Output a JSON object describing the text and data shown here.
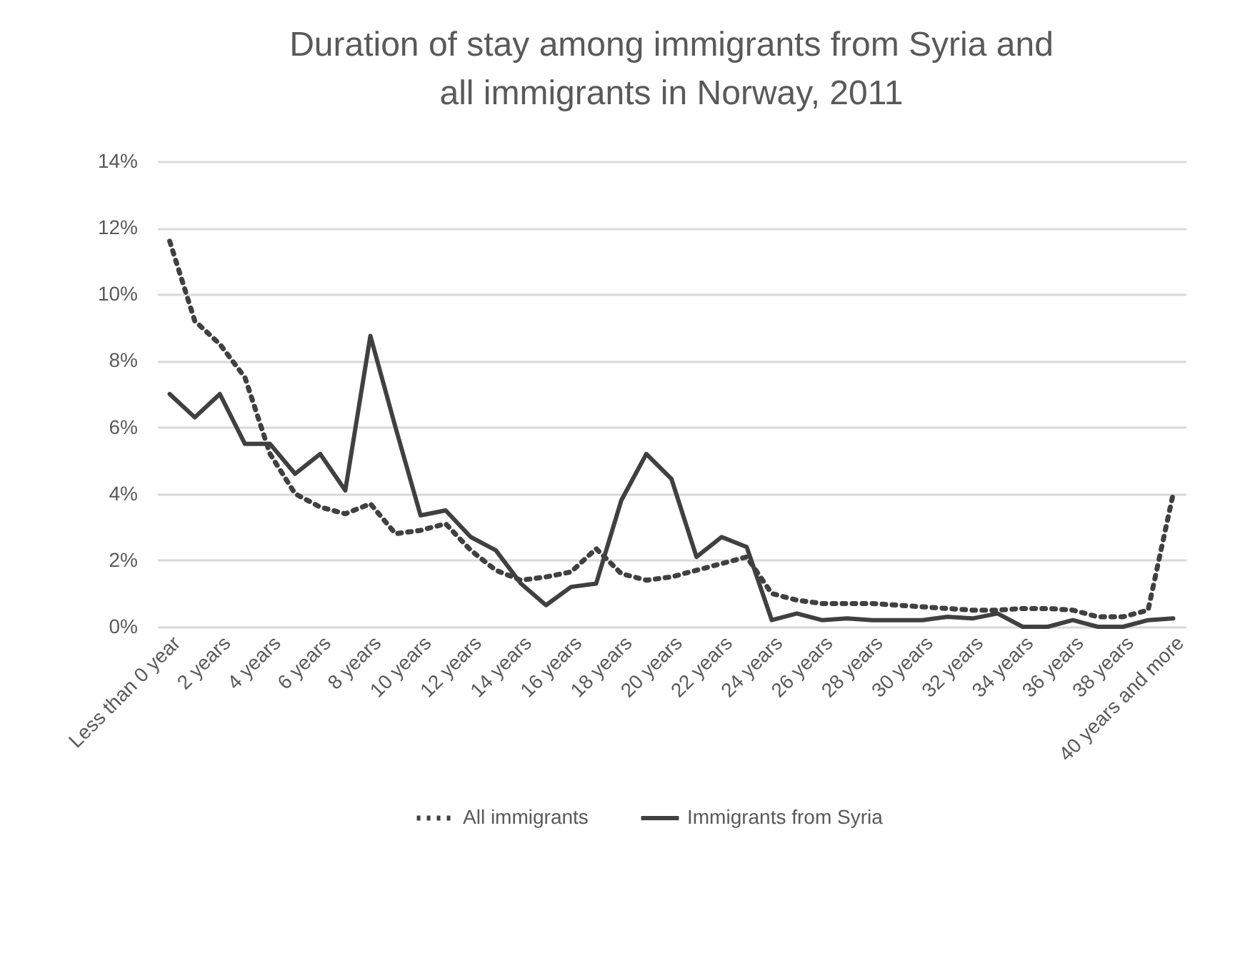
{
  "chart_data": {
    "type": "line",
    "title": "Duration of stay among immigrants from Syria and all immigrants in Norway, 2011",
    "categories": [
      "Less than 0 year",
      null,
      "2 years",
      null,
      "4 years",
      null,
      "6 years",
      null,
      "8 years",
      null,
      "10 years",
      null,
      "12 years",
      null,
      "14 years",
      null,
      "16 years",
      null,
      "18 years",
      null,
      "20 years",
      null,
      "22 years",
      null,
      "24 years",
      null,
      "26 years",
      null,
      "28 years",
      null,
      "30 years",
      null,
      "32 years",
      null,
      "34 years",
      null,
      "36 years",
      null,
      "38 years",
      null,
      "40 years and more"
    ],
    "series": [
      {
        "name": "All immigrants",
        "color": "#404040",
        "line_style": "dotted",
        "values": [
          11.6,
          9.2,
          8.5,
          7.5,
          5.2,
          4.0,
          3.6,
          3.4,
          3.7,
          2.8,
          2.9,
          3.1,
          2.3,
          1.7,
          1.4,
          1.5,
          1.65,
          2.35,
          1.6,
          1.4,
          1.5,
          1.7,
          1.9,
          2.1,
          1.0,
          0.8,
          0.7,
          0.7,
          0.7,
          0.65,
          0.6,
          0.55,
          0.5,
          0.5,
          0.55,
          0.55,
          0.5,
          0.3,
          0.3,
          0.5,
          4.0
        ]
      },
      {
        "name": "Immigrants from Syria",
        "color": "#404040",
        "line_style": "solid",
        "values": [
          7.0,
          6.3,
          7.0,
          5.5,
          5.5,
          4.6,
          5.2,
          4.1,
          8.75,
          6.0,
          3.35,
          3.5,
          2.7,
          2.3,
          1.3,
          0.65,
          1.2,
          1.3,
          3.8,
          5.2,
          4.45,
          2.1,
          2.7,
          2.4,
          0.2,
          0.4,
          0.2,
          0.25,
          0.2,
          0.2,
          0.2,
          0.3,
          0.25,
          0.4,
          0,
          0,
          0.2,
          0,
          0,
          0.2,
          0.25
        ]
      }
    ],
    "ylim": [
      0,
      14
    ],
    "yticks": [
      {
        "value": 0,
        "label": "0%"
      },
      {
        "value": 2,
        "label": "2%"
      },
      {
        "value": 4,
        "label": "4%"
      },
      {
        "value": 6,
        "label": "6%"
      },
      {
        "value": 8,
        "label": "8%"
      },
      {
        "value": 10,
        "label": "10%"
      },
      {
        "value": 12,
        "label": "12%"
      },
      {
        "value": 14,
        "label": "14%"
      }
    ],
    "grid": "y",
    "legend": "bottom"
  }
}
